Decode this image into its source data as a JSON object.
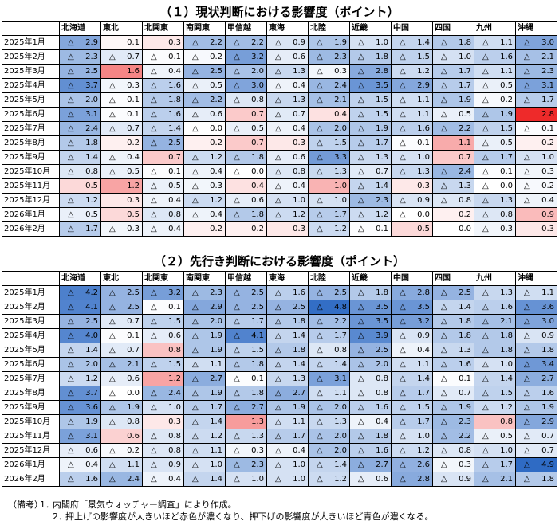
{
  "negative_mark": "△",
  "colors": {
    "max_positive": "#ee2a2a",
    "max_negative": "#2f6bc4",
    "zero": "#ffffff"
  },
  "chart_data": [
    {
      "type": "heatmap",
      "title": "（１）現状判断における影響度（ポイント）",
      "columns": [
        "北海道",
        "東北",
        "北関東",
        "南関東",
        "甲信越",
        "東海",
        "北陸",
        "近畿",
        "中国",
        "四国",
        "九州",
        "沖縄"
      ],
      "rows": [
        "2025年1月",
        "2025年2月",
        "2025年3月",
        "2025年4月",
        "2025年5月",
        "2025年6月",
        "2025年7月",
        "2025年8月",
        "2025年9月",
        "2025年10月",
        "2025年11月",
        "2025年12月",
        "2026年1月",
        "2026年2月"
      ],
      "values": [
        [
          -2.9,
          0.1,
          0.3,
          -2.2,
          -2.2,
          -0.9,
          -1.9,
          -1.0,
          -1.4,
          -1.8,
          -1.1,
          -3.0
        ],
        [
          -2.3,
          -0.7,
          -0.1,
          -0.2,
          -3.2,
          -0.6,
          -2.3,
          -1.8,
          -1.5,
          -1.0,
          -1.6,
          -2.1
        ],
        [
          -2.5,
          1.6,
          -0.4,
          -2.5,
          -2.0,
          -1.3,
          -0.3,
          -2.8,
          -1.2,
          -1.7,
          -1.1,
          -2.3
        ],
        [
          -3.7,
          -0.3,
          -1.6,
          -0.5,
          -3.0,
          -0.4,
          -2.4,
          -3.5,
          -2.9,
          -1.7,
          -0.5,
          -3.1
        ],
        [
          -2.0,
          -0.1,
          -1.8,
          -2.2,
          -0.8,
          -1.3,
          -2.1,
          -1.5,
          -1.1,
          -1.9,
          -0.2,
          -1.7
        ],
        [
          -3.1,
          -0.1,
          -1.6,
          -0.6,
          0.7,
          -0.7,
          0.4,
          -1.5,
          -1.1,
          -0.5,
          -1.9,
          2.8
        ],
        [
          -2.4,
          -0.7,
          -1.4,
          -0.0,
          -0.5,
          -0.4,
          -2.0,
          -1.9,
          -1.6,
          -2.2,
          -1.5,
          -0.1
        ],
        [
          -1.8,
          0.2,
          -2.5,
          0.2,
          0.7,
          0.3,
          -1.5,
          -1.7,
          -0.1,
          1.1,
          -0.5,
          0.2
        ],
        [
          -1.4,
          -0.4,
          0.7,
          -1.2,
          -1.8,
          -0.6,
          -3.3,
          -1.3,
          -1.0,
          0.7,
          -1.7,
          -1.0
        ],
        [
          -0.8,
          -0.5,
          -0.1,
          -0.4,
          -0.0,
          -0.8,
          -1.3,
          -0.7,
          -1.3,
          -2.4,
          -0.1,
          -0.3
        ],
        [
          0.5,
          1.2,
          -0.5,
          -0.3,
          0.4,
          -0.4,
          1.0,
          -1.4,
          0.3,
          -1.3,
          -0.0,
          -0.2
        ],
        [
          -1.2,
          0.3,
          -0.4,
          -1.2,
          -0.6,
          -1.0,
          -1.0,
          -2.3,
          -0.9,
          -0.8,
          -1.3,
          -0.4
        ],
        [
          -0.5,
          0.5,
          -0.8,
          -0.4,
          -1.8,
          -1.2,
          -1.7,
          -1.2,
          -0.0,
          0.2,
          -0.8,
          0.9
        ],
        [
          -1.7,
          -0.3,
          -0.4,
          0.2,
          0.2,
          0.3,
          -1.2,
          -0.1,
          0.5,
          0.0,
          -0.3,
          0.3
        ]
      ]
    },
    {
      "type": "heatmap",
      "title": "（２）先行き判断における影響度（ポイント）",
      "columns": [
        "北海道",
        "東北",
        "北関東",
        "南関東",
        "甲信越",
        "東海",
        "北陸",
        "近畿",
        "中国",
        "四国",
        "九州",
        "沖縄"
      ],
      "rows": [
        "2025年1月",
        "2025年2月",
        "2025年3月",
        "2025年4月",
        "2025年5月",
        "2025年6月",
        "2025年7月",
        "2025年8月",
        "2025年9月",
        "2025年10月",
        "2025年11月",
        "2025年12月",
        "2026年1月",
        "2026年2月"
      ],
      "values": [
        [
          -4.2,
          -2.5,
          -3.2,
          -2.3,
          -2.5,
          -1.6,
          -2.5,
          -1.8,
          -2.8,
          -2.5,
          -1.3,
          -1.1
        ],
        [
          -4.1,
          -2.5,
          -0.1,
          -2.9,
          -2.5,
          -2.5,
          -4.8,
          -3.5,
          -3.5,
          -1.4,
          -1.6,
          -3.6
        ],
        [
          -2.5,
          -0.7,
          -1.5,
          -2.0,
          -1.7,
          -1.8,
          -2.2,
          -3.5,
          -3.2,
          -1.8,
          -2.1,
          -3.0
        ],
        [
          -4.0,
          -0.1,
          -0.6,
          -1.9,
          -4.1,
          -1.4,
          -1.7,
          -3.9,
          -0.9,
          -1.8,
          -1.8,
          -0.9
        ],
        [
          -1.4,
          -0.7,
          0.8,
          -1.9,
          -1.5,
          -1.8,
          -0.8,
          -2.5,
          -0.4,
          -1.3,
          -1.8,
          -1.8
        ],
        [
          -2.0,
          -2.1,
          -1.5,
          -1.1,
          -1.8,
          -1.4,
          -1.4,
          -2.0,
          -1.1,
          -1.6,
          -1.0,
          -3.4
        ],
        [
          -1.2,
          -0.6,
          1.2,
          -2.7,
          -0.1,
          -1.3,
          -3.1,
          -0.8,
          -1.4,
          -0.1,
          -1.4,
          -2.7
        ],
        [
          -3.7,
          -0.0,
          -2.4,
          -1.9,
          -1.8,
          -2.7,
          -1.1,
          -0.8,
          -1.7,
          -0.7,
          -1.5,
          -1.6
        ],
        [
          -3.6,
          -1.9,
          -1.0,
          -1.7,
          -2.7,
          -1.9,
          -2.0,
          -1.6,
          -1.5,
          -1.9,
          -1.2,
          -1.9
        ],
        [
          -1.9,
          -0.8,
          0.3,
          -1.4,
          1.3,
          -1.1,
          -1.3,
          -0.4,
          -1.7,
          -2.3,
          0.8,
          -2.9
        ],
        [
          -3.1,
          0.6,
          -0.8,
          -1.2,
          -1.3,
          -1.7,
          -2.0,
          -1.8,
          -1.0,
          -2.2,
          -0.5,
          -0.7
        ],
        [
          -0.6,
          -0.2,
          -0.8,
          -1.1,
          -0.3,
          -0.4,
          -2.0,
          -1.6,
          -1.2,
          -0.8,
          -1.0,
          -0.7
        ],
        [
          -0.4,
          -1.1,
          -0.9,
          -1.0,
          -2.3,
          -1.0,
          -1.4,
          -2.7,
          -2.6,
          -0.3,
          -1.7,
          -4.9
        ],
        [
          -1.6,
          -2.4,
          -0.4,
          -1.4,
          -1.0,
          -1.0,
          -1.2,
          -0.6,
          -2.8,
          -0.9,
          -2.1,
          -1.8
        ]
      ]
    }
  ],
  "notes": {
    "label": "（備考）",
    "items": [
      "内閣府「景気ウォッチャー調査」により作成。",
      "押上げの影響度が大きいほど赤色が濃くなり、押下げの影響度が大きいほど青色が濃くなる。"
    ],
    "numbers": [
      "1．",
      "2．"
    ]
  }
}
